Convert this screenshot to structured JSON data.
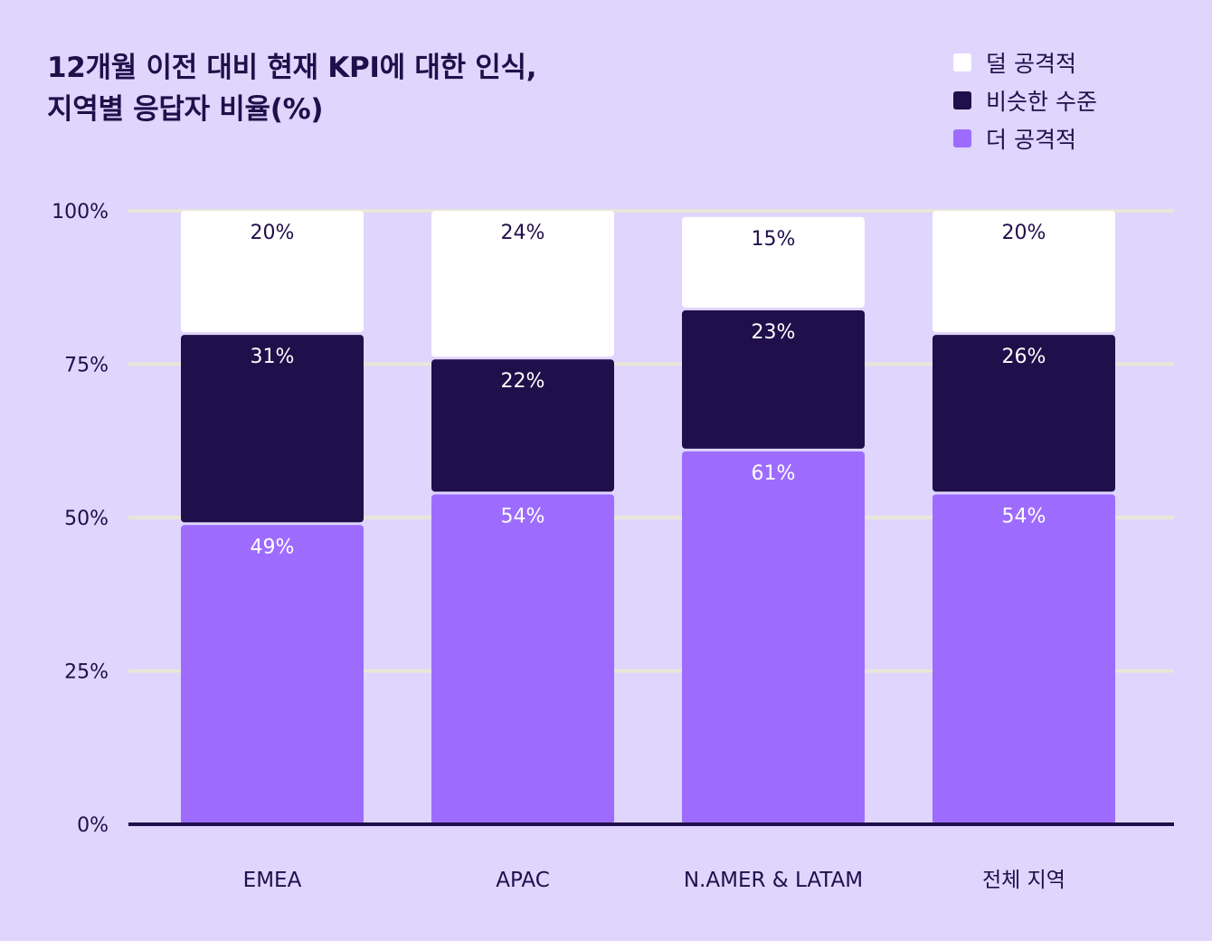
{
  "chart_data": {
    "type": "bar",
    "stacked": true,
    "title_lines": [
      "12개월 이전 대비 현재 KPI에 대한 인식,",
      "지역별 응답자 비율(%)"
    ],
    "categories": [
      "EMEA",
      "APAC",
      "N.AMER & LATAM",
      "전체 지역"
    ],
    "series": [
      {
        "name": "더 공격적",
        "color": "#9d6cfe",
        "label_color": "#ffffff",
        "values": [
          49,
          54,
          61,
          54
        ]
      },
      {
        "name": "비슷한 수준",
        "color": "#200f4a",
        "label_color": "#ffffff",
        "values": [
          31,
          22,
          23,
          26
        ]
      },
      {
        "name": "덜 공격적",
        "color": "#ffffff",
        "label_color": "#200f4a",
        "values": [
          20,
          24,
          15,
          20
        ]
      }
    ],
    "legend_order": [
      2,
      1,
      0
    ],
    "legend_position": "top-right",
    "yticks": [
      "0%",
      "25%",
      "50%",
      "75%",
      "100%"
    ],
    "ylim": [
      0,
      100
    ],
    "grid": true,
    "colors": {
      "background": "#dfd5fd",
      "text": "#200f4a",
      "grid": "#e9e6d9",
      "axis": "#200f4a"
    }
  }
}
